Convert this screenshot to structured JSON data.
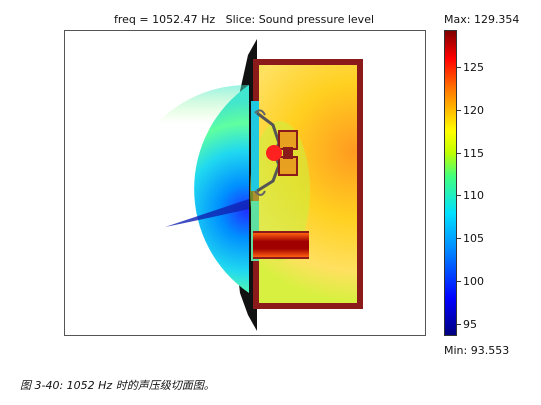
{
  "plot": {
    "title": "freq = 1052.47 Hz   Slice: Sound pressure level"
  },
  "colorbar": {
    "max_label": "Max: 129.354",
    "min_label": "Min: 93.553",
    "max": 129.354,
    "min": 93.553,
    "ticks": [
      "125",
      "120",
      "115",
      "110",
      "105",
      "100",
      "95"
    ],
    "tick_values": [
      125,
      120,
      115,
      110,
      105,
      100,
      95
    ],
    "colormap": [
      "#00007f",
      "#0000ff",
      "#0080ff",
      "#00e0ff",
      "#40ff80",
      "#c0ff00",
      "#ffff00",
      "#ff8000",
      "#ff0000",
      "#7f0000"
    ]
  },
  "caption": "图 3-40: 1052 Hz 时的声压级切面图。",
  "colors": {
    "cabinet_wall": "#8b1a1a",
    "baffle_shadow": "#111111",
    "driver_magnet": "#e8a020"
  }
}
